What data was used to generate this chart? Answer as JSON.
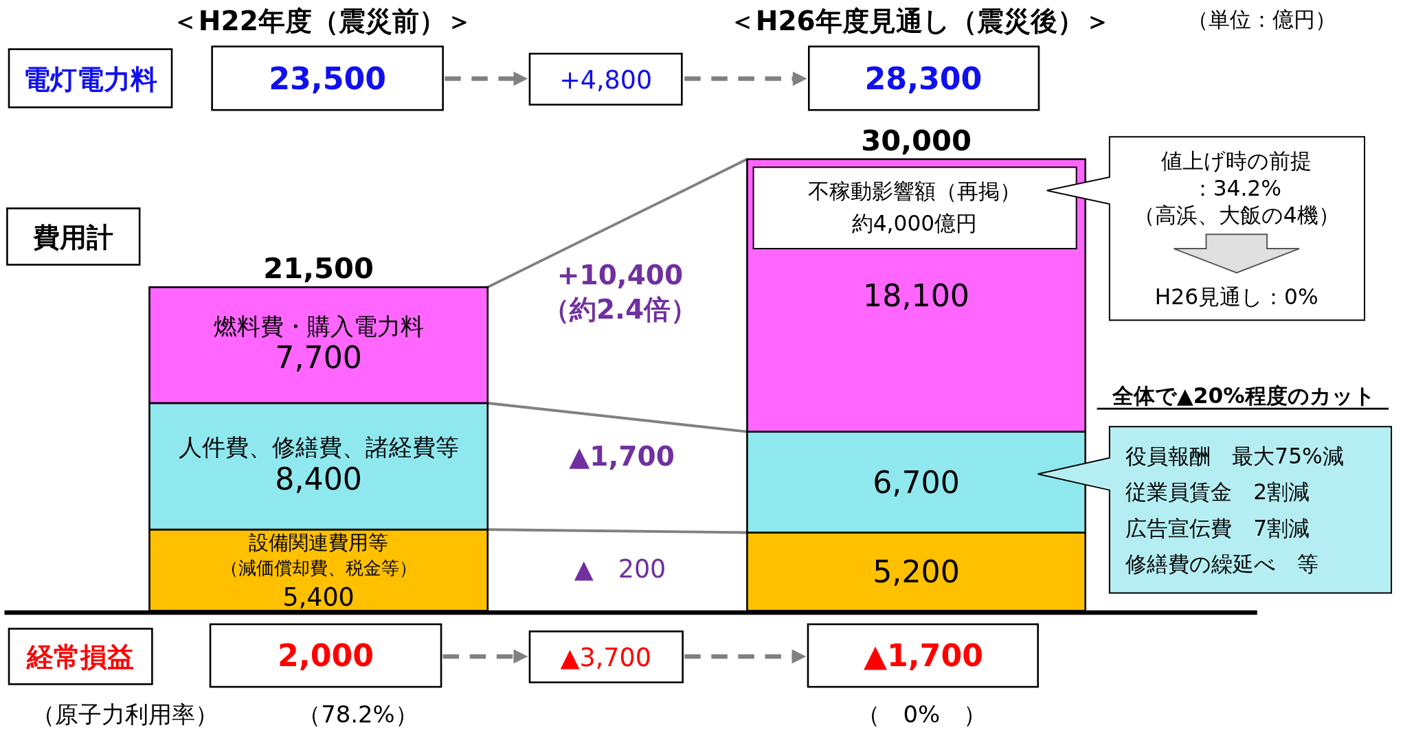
{
  "chart_data": {
    "type": "bar",
    "stacked": true,
    "categories": [
      "＜H22年度（震災前）＞",
      "＜H26年度見通し（震災後）＞"
    ],
    "series": [
      {
        "name": "設備関連費用等",
        "color": "#ffc000",
        "values": [
          5400,
          5200
        ],
        "value_labels": [
          "5,400",
          "5,200"
        ]
      },
      {
        "name": "人件費、修繕費、諸経費等",
        "color": "#8fe8ee",
        "values": [
          8400,
          6700
        ],
        "value_labels": [
          "8,400",
          "6,700"
        ]
      },
      {
        "name": "燃料費・購入電力料",
        "color": "#ff66ff",
        "values": [
          7700,
          18100
        ],
        "value_labels": [
          "7,700",
          "18,100"
        ]
      }
    ],
    "totals": [
      "21,500",
      "30,000"
    ],
    "annotations": [
      "（単位：億円）",
      "電灯電力料",
      "23,500",
      "+4,800",
      "28,300",
      "費用計",
      "+10,400",
      "（約2.4倍）",
      "▲1,700",
      "▲　200",
      "（減価償却費、税金等）",
      "不稼動影響額（再掲）",
      "約4,000億円",
      "値上げ時の前提",
      "：34.2%",
      "（高浜、大飯の4機）",
      "H26見通し：0%",
      "全体で▲20%程度のカット",
      "役員報酬　最大75%減",
      "従業員賃金　2割減",
      "広告宣伝費　7割減",
      "修繕費の繰延べ　等",
      "経常損益",
      "2,000",
      "▲3,700",
      "▲1,700",
      "（原子力利用率）",
      "（78.2%）",
      "（　0%　）"
    ]
  }
}
